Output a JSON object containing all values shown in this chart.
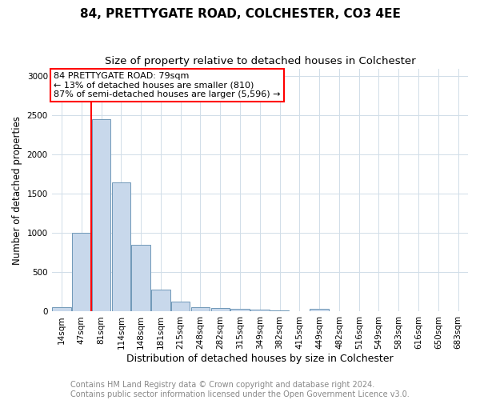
{
  "title": "84, PRETTYGATE ROAD, COLCHESTER, CO3 4EE",
  "subtitle": "Size of property relative to detached houses in Colchester",
  "xlabel": "Distribution of detached houses by size in Colchester",
  "ylabel": "Number of detached properties",
  "categories": [
    "14sqm",
    "47sqm",
    "81sqm",
    "114sqm",
    "148sqm",
    "181sqm",
    "215sqm",
    "248sqm",
    "282sqm",
    "315sqm",
    "349sqm",
    "382sqm",
    "415sqm",
    "449sqm",
    "482sqm",
    "516sqm",
    "549sqm",
    "583sqm",
    "616sqm",
    "650sqm",
    "683sqm"
  ],
  "values": [
    60,
    1000,
    2450,
    1650,
    850,
    280,
    130,
    55,
    45,
    35,
    20,
    15,
    0,
    35,
    0,
    0,
    0,
    0,
    0,
    0,
    0
  ],
  "bar_color": "#c8d8eb",
  "bar_edge_color": "#7098b8",
  "annotation_box_text_line1": "84 PRETTYGATE ROAD: 79sqm",
  "annotation_box_text_line2": "← 13% of detached houses are smaller (810)",
  "annotation_box_text_line3": "87% of semi-detached houses are larger (5,596) →",
  "annotation_box_color": "white",
  "annotation_box_edge_color": "red",
  "ylim": [
    0,
    3100
  ],
  "yticks": [
    0,
    500,
    1000,
    1500,
    2000,
    2500,
    3000
  ],
  "footer_line1": "Contains HM Land Registry data © Crown copyright and database right 2024.",
  "footer_line2": "Contains public sector information licensed under the Open Government Licence v3.0.",
  "title_fontsize": 11,
  "subtitle_fontsize": 9.5,
  "xlabel_fontsize": 9,
  "ylabel_fontsize": 8.5,
  "tick_fontsize": 7.5,
  "annotation_fontsize": 8,
  "footer_fontsize": 7,
  "background_color": "#ffffff",
  "grid_color": "#d0dde8",
  "vertical_line_color": "red",
  "vertical_line_x": 1.5
}
